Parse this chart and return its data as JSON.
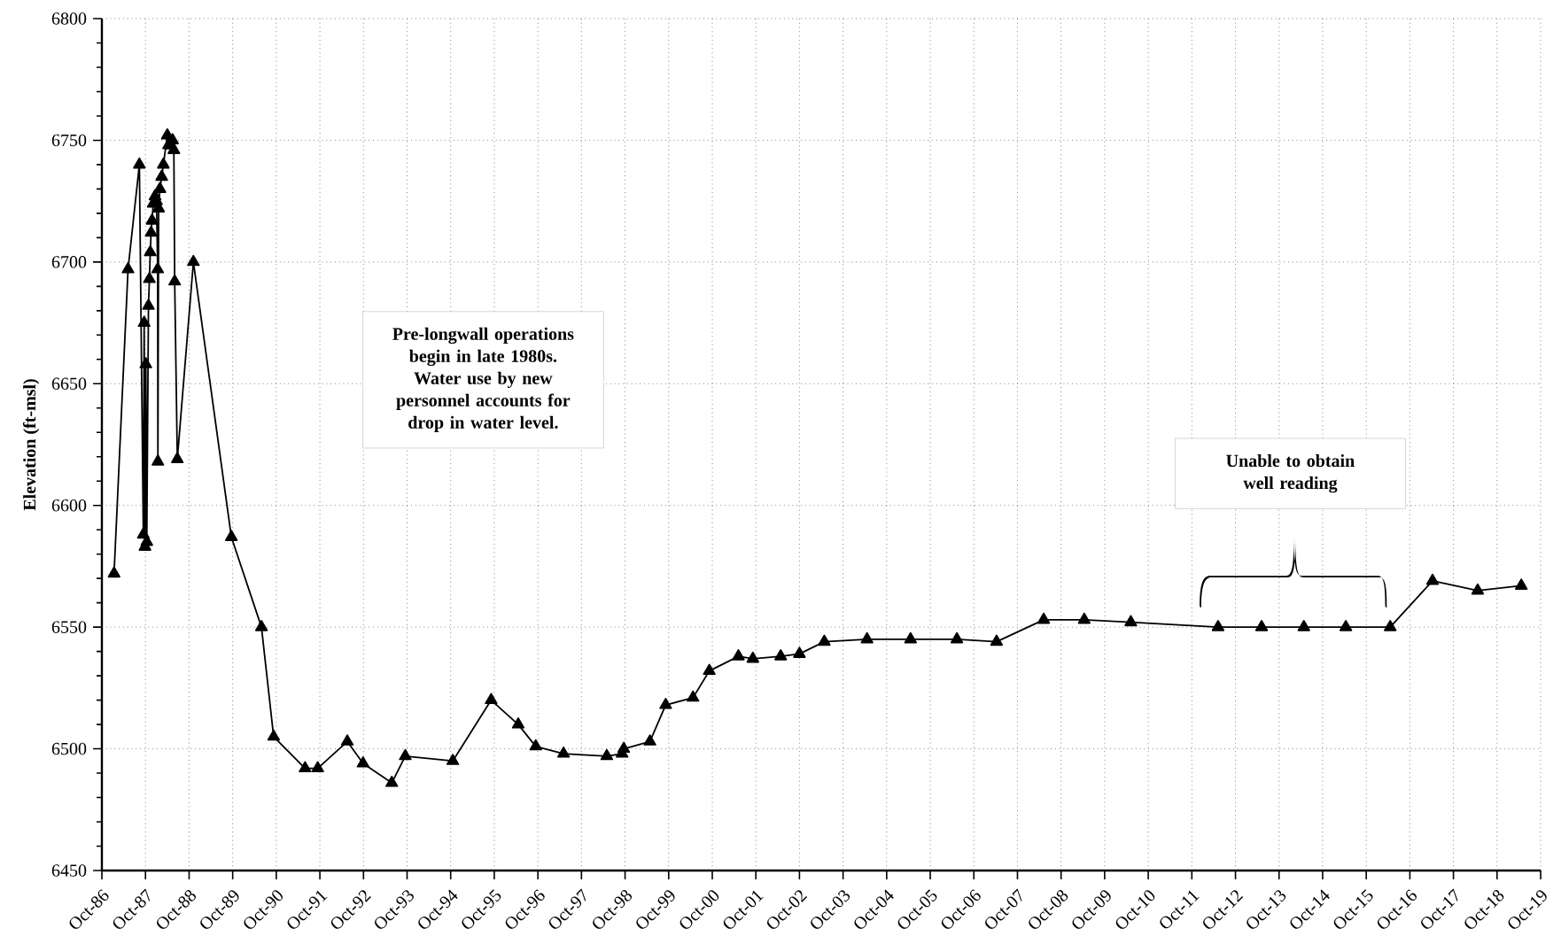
{
  "chart_data": {
    "type": "line",
    "ylabel": "Elevation (ft-msl)",
    "x": [
      "1987-01-11",
      "1987-05-08",
      "1987-08-11",
      "1987-09-13",
      "1987-09-20",
      "1987-09-27",
      "1987-10-04",
      "1987-10-12",
      "1987-10-26",
      "1987-11-03",
      "1987-11-10",
      "1987-11-17",
      "1987-11-25",
      "1987-12-05",
      "1987-12-20",
      "1988-01-01",
      "1988-01-11",
      "1988-01-13",
      "1988-01-19",
      "1988-01-30",
      "1988-02-14",
      "1988-02-28",
      "1988-04-01",
      "1988-04-12",
      "1988-04-30",
      "1988-05-15",
      "1988-05-26",
      "1988-06-02",
      "1988-06-24",
      "1988-11-06",
      "1989-09-20",
      "1990-05-30",
      "1990-09-09",
      "1991-05-30",
      "1991-09-13",
      "1992-05-18",
      "1992-09-27",
      "1993-05-26",
      "1993-09-16",
      "1994-10-19",
      "1995-09-05",
      "1996-04-19",
      "1996-09-13",
      "1997-05-04",
      "1998-05-01",
      "1998-09-06",
      "1998-09-20",
      "1999-04-27",
      "1999-09-06",
      "2000-04-22",
      "2000-09-06",
      "2001-05-08",
      "2001-09-06",
      "2002-04-27",
      "2002-10-01",
      "2003-04-27",
      "2004-04-19",
      "2005-04-19",
      "2006-05-12",
      "2007-04-09",
      "2008-05-08",
      "2009-04-13",
      "2010-05-08",
      "2012-05-08",
      "2013-05-08",
      "2014-04-27",
      "2015-04-13",
      "2016-04-19",
      "2017-04-09",
      "2018-04-22",
      "2019-04-22"
    ],
    "values": [
      6572,
      6697,
      6740,
      6588,
      6675,
      6583,
      6658,
      6585,
      6682,
      6693,
      6704,
      6712,
      6717,
      6724,
      6727,
      6725,
      6697,
      6618,
      6722,
      6730,
      6735,
      6740,
      6752,
      6748,
      6748,
      6750,
      6746,
      6692,
      6619,
      6700,
      6587,
      6550,
      6505,
      6492,
      6492,
      6503,
      6494,
      6486,
      6497,
      6495,
      6520,
      6510,
      6501,
      6498,
      6497,
      6498,
      6500,
      6503,
      6518,
      6521,
      6532,
      6538,
      6537,
      6538,
      6539,
      6544,
      6545,
      6545,
      6545,
      6544,
      6553,
      6553,
      6552,
      6550,
      6550,
      6550,
      6550,
      6550,
      6569,
      6565,
      6567
    ],
    "color": "#000000",
    "marker": "triangle",
    "line_style": "solid",
    "grid": true,
    "xlim": [
      "1986-10-01",
      "2019-10-01"
    ],
    "xticks": [
      {
        "value": "1986-10-01",
        "label": "Oct-86"
      },
      {
        "value": "1987-10-01",
        "label": "Oct-87"
      },
      {
        "value": "1988-10-01",
        "label": "Oct-88"
      },
      {
        "value": "1989-10-01",
        "label": "Oct-89"
      },
      {
        "value": "1990-10-01",
        "label": "Oct-90"
      },
      {
        "value": "1991-10-01",
        "label": "Oct-91"
      },
      {
        "value": "1992-10-01",
        "label": "Oct-92"
      },
      {
        "value": "1993-10-01",
        "label": "Oct-93"
      },
      {
        "value": "1994-10-01",
        "label": "Oct-94"
      },
      {
        "value": "1995-10-01",
        "label": "Oct-95"
      },
      {
        "value": "1996-10-01",
        "label": "Oct-96"
      },
      {
        "value": "1997-10-01",
        "label": "Oct-97"
      },
      {
        "value": "1998-10-01",
        "label": "Oct-98"
      },
      {
        "value": "1999-10-01",
        "label": "Oct-99"
      },
      {
        "value": "2000-10-01",
        "label": "Oct-00"
      },
      {
        "value": "2001-10-01",
        "label": "Oct-01"
      },
      {
        "value": "2002-10-01",
        "label": "Oct-02"
      },
      {
        "value": "2003-10-01",
        "label": "Oct-03"
      },
      {
        "value": "2004-10-01",
        "label": "Oct-04"
      },
      {
        "value": "2005-10-01",
        "label": "Oct-05"
      },
      {
        "value": "2006-10-01",
        "label": "Oct-06"
      },
      {
        "value": "2007-10-01",
        "label": "Oct-07"
      },
      {
        "value": "2008-10-01",
        "label": "Oct-08"
      },
      {
        "value": "2009-10-01",
        "label": "Oct-09"
      },
      {
        "value": "2010-10-01",
        "label": "Oct-10"
      },
      {
        "value": "2011-10-01",
        "label": "Oct-11"
      },
      {
        "value": "2012-10-01",
        "label": "Oct-12"
      },
      {
        "value": "2013-10-01",
        "label": "Oct-13"
      },
      {
        "value": "2014-10-01",
        "label": "Oct-14"
      },
      {
        "value": "2015-10-01",
        "label": "Oct-15"
      },
      {
        "value": "2016-10-01",
        "label": "Oct-16"
      },
      {
        "value": "2017-10-01",
        "label": "Oct-17"
      },
      {
        "value": "2018-10-01",
        "label": "Oct-18"
      },
      {
        "value": "2019-10-01",
        "label": "Oct-19"
      }
    ],
    "ylim": [
      6450,
      6800
    ],
    "yticks": [
      6450,
      6500,
      6550,
      6600,
      6650,
      6700,
      6750,
      6800
    ],
    "annotations": [
      "Pre-longwall operations begin in late 1980s.  Water use by new personnel accounts for drop in water level.",
      "Unable to obtain well reading"
    ]
  }
}
